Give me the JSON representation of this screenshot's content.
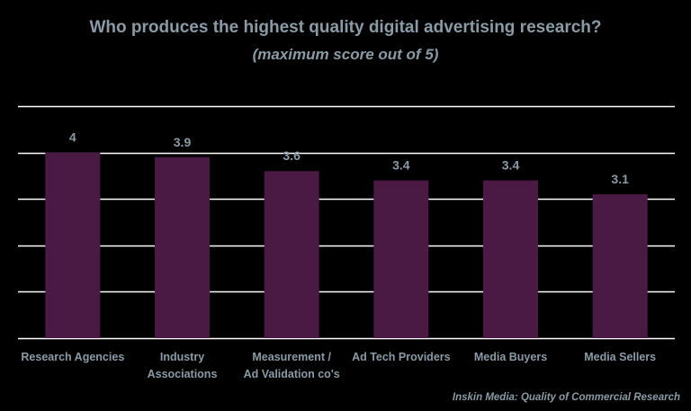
{
  "chart_data": {
    "type": "bar",
    "title": "Who produces the highest quality digital advertising research?",
    "subtitle": "(maximum score out of 5)",
    "categories": [
      [
        "Research Agencies"
      ],
      [
        "Industry",
        "Associations"
      ],
      [
        "Measurement /",
        "Ad Validation co's"
      ],
      [
        "Ad Tech Providers"
      ],
      [
        "Media Buyers"
      ],
      [
        "Media Sellers"
      ]
    ],
    "values": [
      4,
      3.9,
      3.6,
      3.4,
      3.4,
      3.1
    ],
    "value_labels": [
      "4",
      "3.9",
      "3.6",
      "3.4",
      "3.4",
      "3.1"
    ],
    "ylim": [
      0,
      5
    ],
    "grid": true,
    "bar_color": "#4a1a45",
    "source": "Inskin Media: Quality of Commercial Research"
  },
  "colors": {
    "background": "#000000",
    "gridline": "#ffffff",
    "text": "#8a9ba6"
  }
}
